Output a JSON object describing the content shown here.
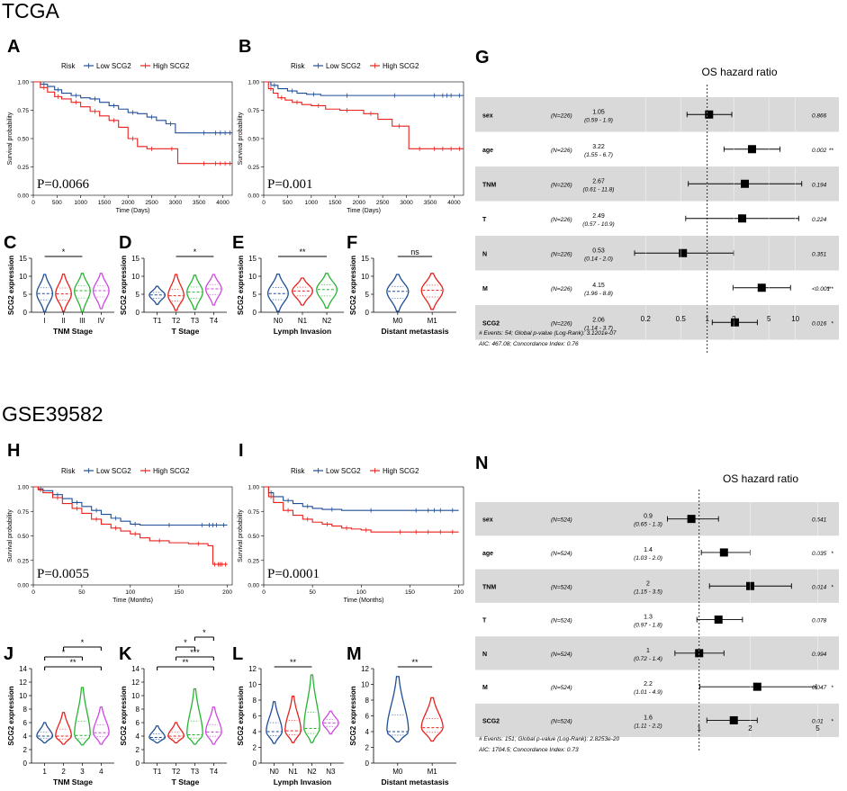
{
  "section_titles": [
    "TCGA",
    "GSE39582"
  ],
  "colors": {
    "low": "#1f4e96",
    "high": "#e8211d",
    "green": "#27b432",
    "magenta": "#cf47e0",
    "band": "#d9d9d9"
  },
  "chart_data": [
    {
      "type": "line",
      "panel": "A",
      "cohort": "TCGA",
      "legend_title": "Risk",
      "legend": [
        "Low SCG2",
        "High SCG2"
      ],
      "xlabel": "Time (Days)",
      "ylabel": "Survival probability",
      "xlim": [
        0,
        4200
      ],
      "ylim": [
        0,
        1
      ],
      "xticks": [
        "0",
        "500",
        "1000",
        "1500",
        "2000",
        "2500",
        "3000",
        "3500",
        "4000"
      ],
      "yticks": [
        "0.00",
        "0.25",
        "0.50",
        "0.75",
        "1.00"
      ],
      "annotation": "P=0.0066",
      "series": [
        {
          "name": "Low SCG2",
          "x": [
            0,
            150,
            300,
            450,
            600,
            800,
            1000,
            1200,
            1400,
            1600,
            1800,
            2000,
            2200,
            2400,
            2600,
            2800,
            3000,
            3400,
            3800,
            4200
          ],
          "y": [
            1.0,
            0.98,
            0.96,
            0.93,
            0.9,
            0.88,
            0.86,
            0.85,
            0.82,
            0.79,
            0.76,
            0.73,
            0.72,
            0.69,
            0.66,
            0.63,
            0.55,
            0.55,
            0.55,
            0.55
          ]
        },
        {
          "name": "High SCG2",
          "x": [
            0,
            150,
            300,
            450,
            600,
            800,
            1000,
            1200,
            1400,
            1600,
            1800,
            2000,
            2200,
            2400,
            2600,
            2800,
            3050,
            3400,
            3800,
            4200
          ],
          "y": [
            1.0,
            0.95,
            0.91,
            0.87,
            0.85,
            0.82,
            0.78,
            0.74,
            0.7,
            0.66,
            0.6,
            0.5,
            0.43,
            0.41,
            0.41,
            0.41,
            0.28,
            0.28,
            0.28,
            0.28
          ]
        }
      ]
    },
    {
      "type": "line",
      "panel": "B",
      "cohort": "TCGA",
      "legend_title": "Risk",
      "legend": [
        "Low SCG2",
        "High SCG2"
      ],
      "xlabel": "Time (Days)",
      "ylabel": "Survival probability",
      "xlim": [
        0,
        4200
      ],
      "ylim": [
        0,
        1
      ],
      "xticks": [
        "0",
        "500",
        "1000",
        "1500",
        "2000",
        "2500",
        "3000",
        "3500",
        "4000"
      ],
      "yticks": [
        "0.00",
        "0.25",
        "0.50",
        "0.75",
        "1.00"
      ],
      "annotation": "P=0.001",
      "series": [
        {
          "name": "Low SCG2",
          "x": [
            0,
            150,
            300,
            500,
            700,
            900,
            1200,
            1500,
            2000,
            2500,
            3000,
            3500,
            4200
          ],
          "y": [
            1.0,
            0.97,
            0.94,
            0.92,
            0.9,
            0.89,
            0.88,
            0.88,
            0.88,
            0.88,
            0.88,
            0.88,
            0.88
          ]
        },
        {
          "name": "High SCG2",
          "x": [
            0,
            100,
            200,
            300,
            450,
            600,
            800,
            1000,
            1300,
            1600,
            1900,
            2100,
            2400,
            2700,
            3000,
            3050,
            3500,
            4200
          ],
          "y": [
            1.0,
            0.94,
            0.9,
            0.86,
            0.84,
            0.82,
            0.8,
            0.79,
            0.76,
            0.75,
            0.75,
            0.72,
            0.67,
            0.61,
            0.61,
            0.41,
            0.41,
            0.41
          ]
        }
      ]
    },
    {
      "type": "violin",
      "panel": "C",
      "xlabel": "TNM Stage",
      "ylabel": "SCG2 expression",
      "ylim": [
        0,
        15
      ],
      "yticks": [
        "0",
        "5",
        "10",
        "15"
      ],
      "categories": [
        "I",
        "II",
        "III",
        "IV"
      ],
      "medians": [
        5.2,
        5.1,
        6.0,
        6.0
      ],
      "ranges": [
        [
          0.2,
          10.5
        ],
        [
          0.3,
          10.6
        ],
        [
          0.2,
          10.8
        ],
        [
          1.0,
          10.8
        ]
      ],
      "colors": [
        "#1f4e96",
        "#e8211d",
        "#27b432",
        "#cf47e0"
      ],
      "significance": [
        {
          "from": "I",
          "to": "III",
          "label": "*"
        }
      ]
    },
    {
      "type": "violin",
      "panel": "D",
      "xlabel": "T Stage",
      "ylabel": "SCG2 expression",
      "ylim": [
        0,
        15
      ],
      "yticks": [
        "0",
        "5",
        "10",
        "15"
      ],
      "categories": [
        "T1",
        "T2",
        "T3",
        "T4"
      ],
      "medians": [
        4.8,
        4.6,
        5.6,
        6.5
      ],
      "ranges": [
        [
          2.2,
          7.2
        ],
        [
          0.5,
          10.5
        ],
        [
          0.8,
          10.3
        ],
        [
          2.0,
          10.5
        ]
      ],
      "colors": [
        "#1f4e96",
        "#e8211d",
        "#27b432",
        "#cf47e0"
      ],
      "significance": [
        {
          "from": "T2",
          "to": "T4",
          "label": "*"
        }
      ]
    },
    {
      "type": "violin",
      "panel": "E",
      "xlabel": "Lymph Invasion",
      "ylabel": "SCG2 expression",
      "ylim": [
        0,
        15
      ],
      "yticks": [
        "0",
        "5",
        "10",
        "15"
      ],
      "categories": [
        "N0",
        "N1",
        "N2"
      ],
      "medians": [
        5.2,
        5.9,
        6.3
      ],
      "ranges": [
        [
          0.3,
          10.6
        ],
        [
          2.0,
          9.5
        ],
        [
          1.2,
          10.8
        ]
      ],
      "colors": [
        "#1f4e96",
        "#e8211d",
        "#27b432"
      ],
      "significance": [
        {
          "from": "N0",
          "to": "N2",
          "label": "**"
        }
      ]
    },
    {
      "type": "violin",
      "panel": "F",
      "xlabel": "Distant metastasis",
      "ylabel": "SCG2 expression",
      "ylim": [
        0,
        15
      ],
      "yticks": [
        "0",
        "5",
        "10",
        "15"
      ],
      "categories": [
        "M0",
        "M1"
      ],
      "medians": [
        5.8,
        6.1
      ],
      "ranges": [
        [
          0.3,
          10.5
        ],
        [
          0.8,
          10.8
        ]
      ],
      "colors": [
        "#1f4e96",
        "#e8211d"
      ],
      "significance": [
        {
          "from": "M0",
          "to": "M1",
          "label": "ns"
        }
      ]
    },
    {
      "type": "forest",
      "panel": "G",
      "title": "OS hazard ratio",
      "scale": "log",
      "xticks": [
        "0.2",
        "0.5",
        "1",
        "2",
        "5",
        "10"
      ],
      "xlim": [
        0.15,
        14
      ],
      "ref": 1,
      "rows": [
        {
          "var": "sex",
          "n": "(N=226)",
          "hr": 1.05,
          "ci_text": "(0.59 - 1.9)",
          "lo": 0.59,
          "hi": 1.9,
          "p": "0.866",
          "sig": ""
        },
        {
          "var": "age",
          "n": "(N=226)",
          "hr": 3.22,
          "ci_text": "(1.55 - 6.7)",
          "lo": 1.55,
          "hi": 6.7,
          "p": "0.002",
          "sig": "**"
        },
        {
          "var": "TNM",
          "n": "(N=226)",
          "hr": 2.67,
          "ci_text": "(0.61 - 11.8)",
          "lo": 0.61,
          "hi": 11.8,
          "p": "0.194",
          "sig": ""
        },
        {
          "var": "T",
          "n": "(N=226)",
          "hr": 2.49,
          "ci_text": "(0.57 - 10.9)",
          "lo": 0.57,
          "hi": 10.9,
          "p": "0.224",
          "sig": ""
        },
        {
          "var": "N",
          "n": "(N=226)",
          "hr": 0.53,
          "ci_text": "(0.14 - 2.0)",
          "lo": 0.14,
          "hi": 2.0,
          "p": "0.351",
          "sig": ""
        },
        {
          "var": "M",
          "n": "(N=226)",
          "hr": 4.15,
          "ci_text": "(1.96 - 8.8)",
          "lo": 1.96,
          "hi": 8.8,
          "p": "<0.001",
          "sig": "***"
        },
        {
          "var": "SCG2",
          "n": "(N=226)",
          "hr": 2.06,
          "ci_text": "(1.14 - 3.7)",
          "lo": 1.14,
          "hi": 3.7,
          "p": "0.016",
          "sig": "*"
        }
      ],
      "footer": [
        "# Events: 54; Global p-value (Log-Rank): 3.1201e-07",
        "AIC: 467.08; Concordance Index: 0.76"
      ]
    },
    {
      "type": "line",
      "panel": "H",
      "cohort": "GSE39582",
      "legend_title": "Risk",
      "legend": [
        "Low SCG2",
        "High SCG2"
      ],
      "xlabel": "Time (Months)",
      "ylabel": "Survival probability",
      "xlim": [
        0,
        205
      ],
      "ylim": [
        0,
        1
      ],
      "xticks": [
        "0",
        "50",
        "100",
        "150",
        "200"
      ],
      "yticks": [
        "0.00",
        "0.25",
        "0.50",
        "0.75",
        "1.00"
      ],
      "annotation": "P=0.0055",
      "series": [
        {
          "name": "Low SCG2",
          "x": [
            0,
            5,
            10,
            20,
            30,
            40,
            50,
            60,
            70,
            80,
            90,
            100,
            110,
            130,
            150,
            170,
            200
          ],
          "y": [
            1.0,
            0.98,
            0.96,
            0.92,
            0.88,
            0.84,
            0.8,
            0.76,
            0.72,
            0.68,
            0.65,
            0.62,
            0.61,
            0.61,
            0.61,
            0.61,
            0.61
          ]
        },
        {
          "name": "High SCG2",
          "x": [
            0,
            5,
            10,
            20,
            30,
            40,
            50,
            60,
            70,
            80,
            90,
            100,
            110,
            120,
            140,
            160,
            180,
            185,
            200
          ],
          "y": [
            1.0,
            0.97,
            0.94,
            0.89,
            0.83,
            0.78,
            0.73,
            0.67,
            0.62,
            0.58,
            0.55,
            0.52,
            0.48,
            0.45,
            0.43,
            0.42,
            0.4,
            0.21,
            0.21
          ]
        }
      ]
    },
    {
      "type": "line",
      "panel": "I",
      "cohort": "GSE39582",
      "legend_title": "Risk",
      "legend": [
        "Low SCG2",
        "High SCG2"
      ],
      "xlabel": "Time (Months)",
      "ylabel": "Survival probability",
      "xlim": [
        0,
        205
      ],
      "ylim": [
        0,
        1
      ],
      "xticks": [
        "0",
        "50",
        "100",
        "150",
        "200"
      ],
      "yticks": [
        "0.00",
        "0.25",
        "0.50",
        "0.75",
        "1.00"
      ],
      "annotation": "P=0.0001",
      "series": [
        {
          "name": "Low SCG2",
          "x": [
            0,
            5,
            10,
            20,
            30,
            40,
            50,
            60,
            80,
            100,
            120,
            150,
            200
          ],
          "y": [
            1.0,
            0.94,
            0.9,
            0.86,
            0.83,
            0.8,
            0.78,
            0.77,
            0.76,
            0.76,
            0.76,
            0.76,
            0.76
          ]
        },
        {
          "name": "High SCG2",
          "x": [
            0,
            5,
            10,
            20,
            30,
            40,
            50,
            60,
            70,
            80,
            90,
            100,
            110,
            130,
            150,
            200
          ],
          "y": [
            1.0,
            0.9,
            0.84,
            0.76,
            0.71,
            0.67,
            0.64,
            0.62,
            0.6,
            0.58,
            0.57,
            0.56,
            0.54,
            0.54,
            0.54,
            0.54
          ]
        }
      ]
    },
    {
      "type": "violin",
      "panel": "J",
      "xlabel": "TNM Stage",
      "ylabel": "SCG2 expression",
      "ylim": [
        0,
        14
      ],
      "yticks": [
        "0",
        "2",
        "4",
        "6",
        "8",
        "10",
        "12",
        "14"
      ],
      "categories": [
        "1",
        "2",
        "3",
        "4"
      ],
      "medians": [
        4.0,
        4.0,
        4.1,
        4.5
      ],
      "ranges": [
        [
          3.0,
          6.0
        ],
        [
          2.8,
          7.5
        ],
        [
          2.7,
          11.2
        ],
        [
          2.8,
          8.3
        ]
      ],
      "colors": [
        "#1f4e96",
        "#e8211d",
        "#27b432",
        "#cf47e0"
      ],
      "significance": [
        {
          "from": "1",
          "to": "4",
          "label": "**"
        },
        {
          "from": "1",
          "to": "3",
          "label": "*"
        },
        {
          "from": "2",
          "to": "4",
          "label": "*"
        }
      ]
    },
    {
      "type": "violin",
      "panel": "K",
      "xlabel": "T Stage",
      "ylabel": "SCG2 expression",
      "ylim": [
        0,
        14
      ],
      "yticks": [
        "0",
        "2",
        "4",
        "6",
        "8",
        "10",
        "12",
        "14"
      ],
      "categories": [
        "T1",
        "T2",
        "T3",
        "T4"
      ],
      "medians": [
        3.8,
        4.0,
        4.2,
        4.6
      ],
      "ranges": [
        [
          3.0,
          5.5
        ],
        [
          3.0,
          6.0
        ],
        [
          2.8,
          11.0
        ],
        [
          2.8,
          8.3
        ]
      ],
      "colors": [
        "#1f4e96",
        "#e8211d",
        "#27b432",
        "#cf47e0"
      ],
      "significance": [
        {
          "from": "T1",
          "to": "T4",
          "label": "**"
        },
        {
          "from": "T2",
          "to": "T4",
          "label": "***"
        },
        {
          "from": "T2",
          "to": "T3",
          "label": "*"
        },
        {
          "from": "T3",
          "to": "T4",
          "label": "*"
        }
      ]
    },
    {
      "type": "violin",
      "panel": "L",
      "xlabel": "Lymph Invasion",
      "ylabel": "SCG2 expression",
      "ylim": [
        0,
        12
      ],
      "yticks": [
        "0",
        "2",
        "4",
        "6",
        "8",
        "10",
        "12"
      ],
      "categories": [
        "N0",
        "N1",
        "N2",
        "N3"
      ],
      "medians": [
        4.0,
        4.1,
        4.4,
        5.1
      ],
      "ranges": [
        [
          2.5,
          7.8
        ],
        [
          2.6,
          8.5
        ],
        [
          2.6,
          11.2
        ],
        [
          3.7,
          6.6
        ]
      ],
      "colors": [
        "#1f4e96",
        "#e8211d",
        "#27b432",
        "#cf47e0"
      ],
      "significance": [
        {
          "from": "N0",
          "to": "N2",
          "label": "**"
        }
      ]
    },
    {
      "type": "violin",
      "panel": "M",
      "xlabel": "Distant metastasis",
      "ylabel": "SCG2 expression",
      "ylim": [
        0,
        12
      ],
      "yticks": [
        "0",
        "2",
        "4",
        "6",
        "8",
        "10",
        "12"
      ],
      "categories": [
        "M0",
        "M1"
      ],
      "medians": [
        4.0,
        4.5
      ],
      "ranges": [
        [
          2.7,
          11.0
        ],
        [
          2.8,
          8.3
        ]
      ],
      "colors": [
        "#1f4e96",
        "#e8211d"
      ],
      "significance": [
        {
          "from": "M0",
          "to": "M1",
          "label": "**"
        }
      ]
    },
    {
      "type": "forest",
      "panel": "N",
      "title": "OS hazard ratio",
      "scale": "log",
      "xticks": [
        "1",
        "2",
        "5"
      ],
      "xlim": [
        0.5,
        6.5
      ],
      "ref": 1,
      "rows": [
        {
          "var": "sex",
          "n": "(N=524)",
          "hr": 0.9,
          "ci_text": "(0.65 - 1.3)",
          "lo": 0.65,
          "hi": 1.3,
          "p": "0.541",
          "sig": ""
        },
        {
          "var": "age",
          "n": "(N=524)",
          "hr": 1.4,
          "ci_text": "(1.03 - 2.0)",
          "lo": 1.03,
          "hi": 2.0,
          "p": "0.035",
          "sig": "*"
        },
        {
          "var": "TNM",
          "n": "(N=524)",
          "hr": 2.0,
          "ci_text": "(1.15 - 3.5)",
          "lo": 1.15,
          "hi": 3.5,
          "p": "0.014",
          "sig": "*"
        },
        {
          "var": "T",
          "n": "(N=524)",
          "hr": 1.3,
          "ci_text": "(0.97 - 1.8)",
          "lo": 0.97,
          "hi": 1.8,
          "p": "0.078",
          "sig": ""
        },
        {
          "var": "N",
          "n": "(N=524)",
          "hr": 1.0,
          "ci_text": "(0.72 - 1.4)",
          "lo": 0.72,
          "hi": 1.4,
          "p": "0.994",
          "sig": ""
        },
        {
          "var": "M",
          "n": "(N=524)",
          "hr": 2.2,
          "ci_text": "(1.01 - 4.9)",
          "lo": 1.01,
          "hi": 4.9,
          "p": "0.047",
          "sig": "*"
        },
        {
          "var": "SCG2",
          "n": "(N=524)",
          "hr": 1.6,
          "ci_text": "(1.11 - 2.2)",
          "lo": 1.11,
          "hi": 2.2,
          "p": "0.01",
          "sig": "*"
        }
      ],
      "footer": [
        "# Events: 151; Global p-value (Log-Rank): 2.8253e-20",
        "AIC: 1704.5; Concordance Index: 0.73"
      ]
    }
  ]
}
